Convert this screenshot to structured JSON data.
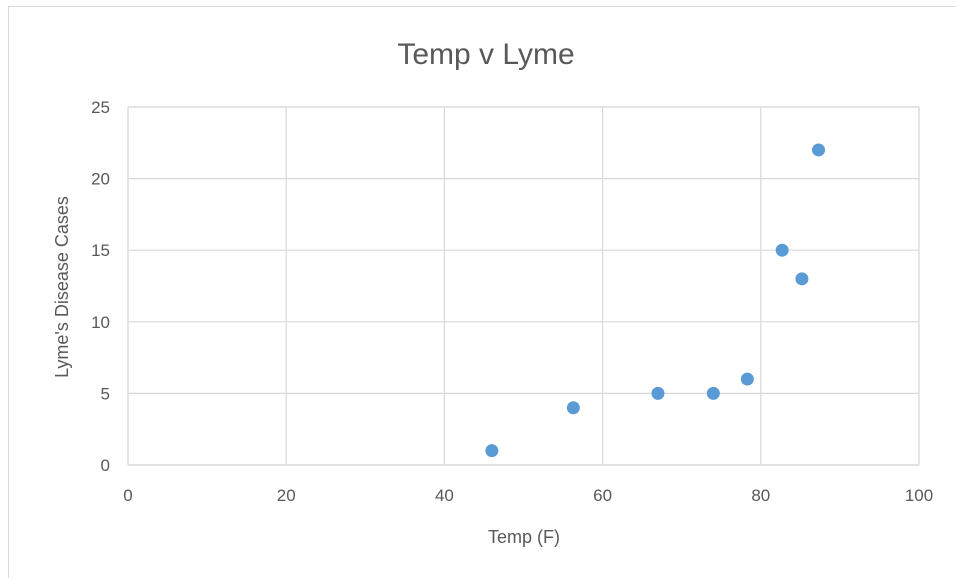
{
  "chart_data": {
    "type": "scatter",
    "title": "Temp v Lyme",
    "xlabel": "Temp  (F)",
    "ylabel": "Lyme's Disease Cases",
    "xlim": [
      0,
      100
    ],
    "ylim": [
      0,
      25
    ],
    "x_ticks": [
      "0",
      "20",
      "40",
      "60",
      "80",
      "100"
    ],
    "y_ticks": [
      "0",
      "5",
      "10",
      "15",
      "20",
      "25"
    ],
    "grid": true,
    "legend": "none",
    "series": [
      {
        "color": "#5b9bd5",
        "points": [
          {
            "x": 46,
            "y": 1
          },
          {
            "x": 56.3,
            "y": 4
          },
          {
            "x": 67,
            "y": 5
          },
          {
            "x": 74,
            "y": 5
          },
          {
            "x": 78.3,
            "y": 6
          },
          {
            "x": 82.7,
            "y": 15
          },
          {
            "x": 85.2,
            "y": 13
          },
          {
            "x": 87.3,
            "y": 22
          }
        ]
      }
    ]
  }
}
